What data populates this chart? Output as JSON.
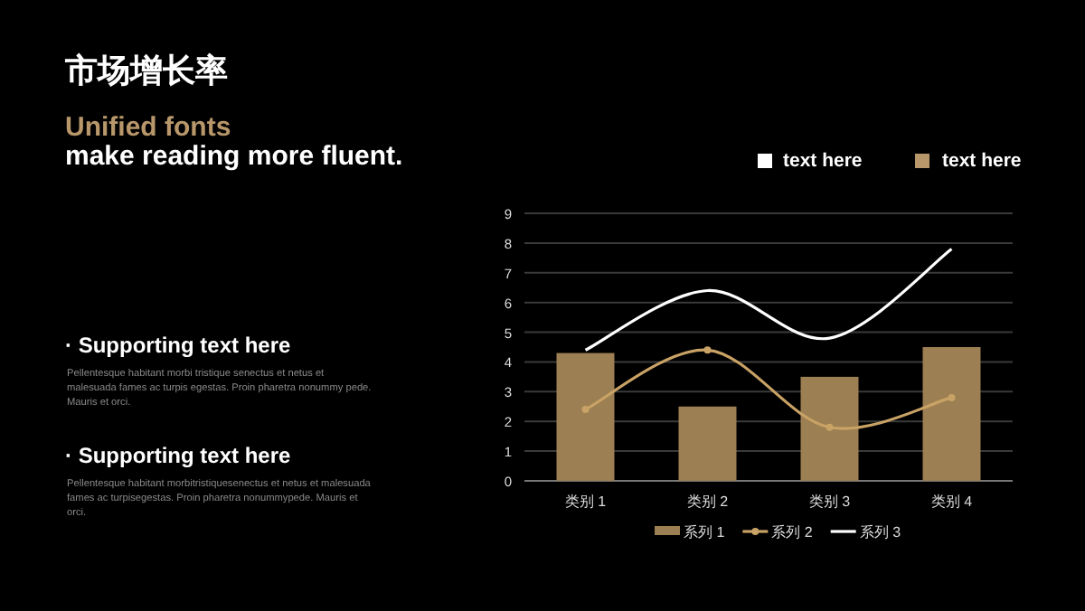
{
  "chart_data": {
    "type": "bar",
    "title": "市场增长率",
    "subtitle": "Unified fonts",
    "annotations": [
      "make reading more fluent.",
      "· Supporting text here",
      "Pellentesque habitant morbi tristique senectus et netus et malesuada fames ac turpis egestas. Proin pharetra nonummy pede. Mauris et orci.",
      "· Supporting text here",
      "Pellentesque habitant morbitristiquesenectus et netus et malesuada fames ac turpisegestas. Proin pharetra nonummypede. Mauris et orci.",
      "text here",
      "text here"
    ],
    "categories": [
      "类别 1",
      "类别 2",
      "类别 3",
      "类别 4"
    ],
    "series": [
      {
        "name": "系列 1",
        "color": "#9c7f52",
        "values": [
          4.3,
          2.5,
          3.5,
          4.5
        ]
      },
      {
        "name": "系列 2",
        "type": "line",
        "color": "#c9a265",
        "marker": "circle",
        "values": [
          2.4,
          4.4,
          1.8,
          2.8
        ]
      },
      {
        "name": "系列 3",
        "type": "line",
        "color": "#ffffff",
        "values": [
          4.4,
          6.4,
          4.8,
          7.8
        ]
      }
    ],
    "ylim": [
      0,
      9
    ],
    "yticks": [
      0,
      1,
      2,
      3,
      4,
      5,
      6,
      7,
      8,
      9
    ],
    "grid": "y",
    "legend": "bottom"
  }
}
